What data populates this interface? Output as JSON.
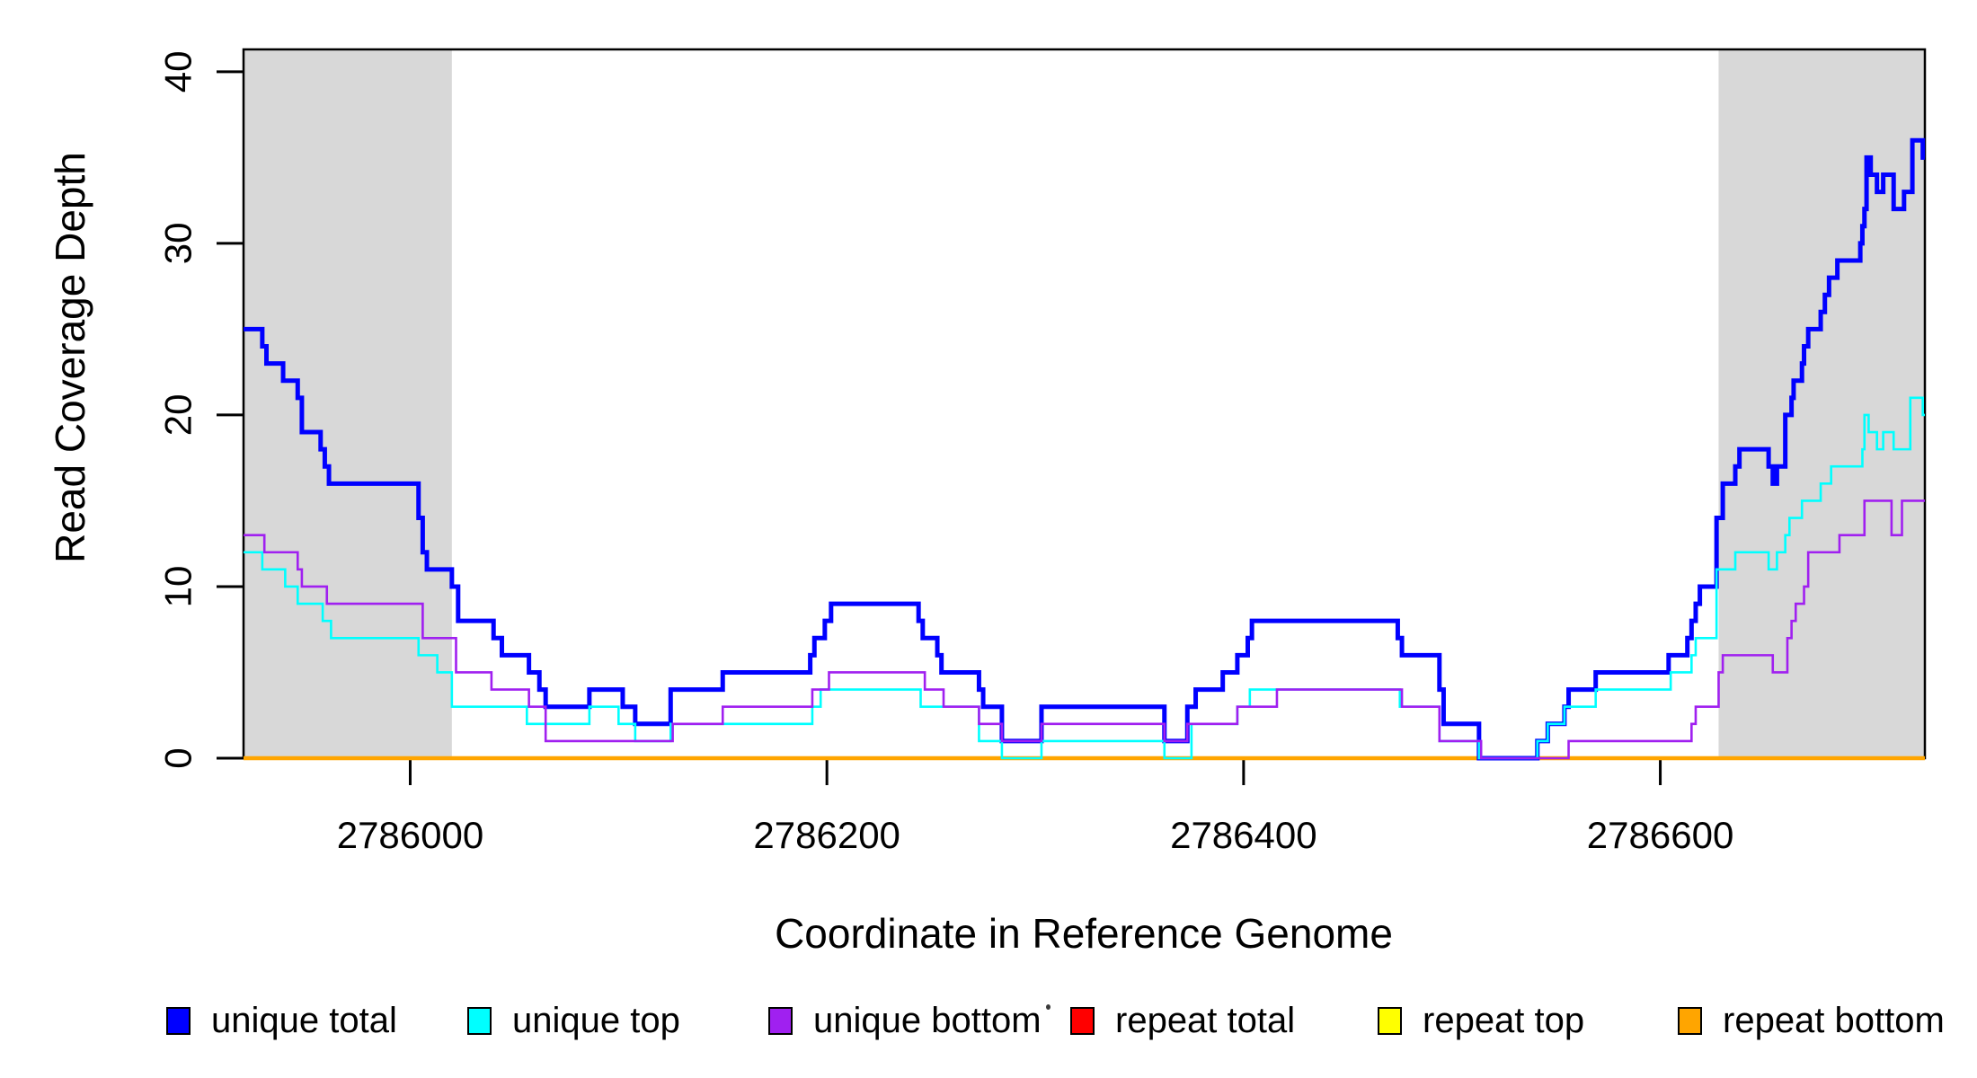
{
  "chart_data": {
    "type": "line",
    "subtype": "step",
    "title": "",
    "xlabel": "Coordinate in Reference Genome",
    "ylabel": "Read Coverage Depth",
    "xlim": [
      2785920,
      2786727
    ],
    "ylim": [
      0,
      41.3
    ],
    "x_ticks": [
      2786000,
      2786200,
      2786400,
      2786600
    ],
    "y_ticks": [
      0,
      10,
      20,
      30,
      40
    ],
    "grid": false,
    "box_color": "#000000",
    "shaded_regions": [
      {
        "x0": 2785920,
        "x1": 2786020,
        "color": "#d8d8d8"
      },
      {
        "x0": 2786628,
        "x1": 2786727,
        "color": "#d8d8d8"
      }
    ],
    "series": [
      {
        "name": "unique total",
        "color": "#0000ff",
        "width": 5,
        "steps": [
          [
            2785920,
            25
          ],
          [
            2785929,
            24
          ],
          [
            2785931,
            23
          ],
          [
            2785939,
            22
          ],
          [
            2785946,
            21
          ],
          [
            2785948,
            19
          ],
          [
            2785957,
            18
          ],
          [
            2785959,
            17
          ],
          [
            2785961,
            16
          ],
          [
            2786004,
            14
          ],
          [
            2786006,
            12
          ],
          [
            2786008,
            11
          ],
          [
            2786020,
            10
          ],
          [
            2786023,
            8
          ],
          [
            2786040,
            7
          ],
          [
            2786044,
            6
          ],
          [
            2786057,
            5
          ],
          [
            2786062,
            4
          ],
          [
            2786065,
            3
          ],
          [
            2786086,
            4
          ],
          [
            2786102,
            3
          ],
          [
            2786108,
            2
          ],
          [
            2786125,
            4
          ],
          [
            2786150,
            5
          ],
          [
            2786192,
            6
          ],
          [
            2786194,
            7
          ],
          [
            2786199,
            8
          ],
          [
            2786202,
            9
          ],
          [
            2786244,
            8
          ],
          [
            2786246,
            7
          ],
          [
            2786253,
            6
          ],
          [
            2786255,
            5
          ],
          [
            2786273,
            4
          ],
          [
            2786275,
            3
          ],
          [
            2786284,
            1
          ],
          [
            2786303,
            3
          ],
          [
            2786362,
            1
          ],
          [
            2786373,
            3
          ],
          [
            2786377,
            4
          ],
          [
            2786390,
            5
          ],
          [
            2786397,
            6
          ],
          [
            2786402,
            7
          ],
          [
            2786404,
            8
          ],
          [
            2786474,
            7
          ],
          [
            2786476,
            6
          ],
          [
            2786494,
            4
          ],
          [
            2786496,
            2
          ],
          [
            2786513,
            0
          ],
          [
            2786541,
            1
          ],
          [
            2786546,
            2
          ],
          [
            2786554,
            3
          ],
          [
            2786556,
            4
          ],
          [
            2786569,
            5
          ],
          [
            2786604,
            6
          ],
          [
            2786613,
            7
          ],
          [
            2786615,
            8
          ],
          [
            2786617,
            9
          ],
          [
            2786619,
            10
          ],
          [
            2786627,
            14
          ],
          [
            2786630,
            16
          ],
          [
            2786636,
            17
          ],
          [
            2786638,
            18
          ],
          [
            2786652,
            17
          ],
          [
            2786654,
            16
          ],
          [
            2786656,
            17
          ],
          [
            2786660,
            20
          ],
          [
            2786663,
            21
          ],
          [
            2786664,
            22
          ],
          [
            2786668,
            23
          ],
          [
            2786669,
            24
          ],
          [
            2786671,
            25
          ],
          [
            2786677,
            26
          ],
          [
            2786679,
            27
          ],
          [
            2786681,
            28
          ],
          [
            2786685,
            29
          ],
          [
            2786696,
            30
          ],
          [
            2786697,
            31
          ],
          [
            2786698,
            32
          ],
          [
            2786699,
            35
          ],
          [
            2786701,
            34
          ],
          [
            2786704,
            33
          ],
          [
            2786707,
            34
          ],
          [
            2786712,
            32
          ],
          [
            2786717,
            33
          ],
          [
            2786721,
            36
          ],
          [
            2786726,
            35
          ]
        ]
      },
      {
        "name": "unique top",
        "color": "#00ffff",
        "width": 2.6,
        "steps": [
          [
            2785920,
            12
          ],
          [
            2785929,
            11
          ],
          [
            2785940,
            10
          ],
          [
            2785946,
            9
          ],
          [
            2785958,
            8
          ],
          [
            2785962,
            7
          ],
          [
            2786004,
            6
          ],
          [
            2786013,
            5
          ],
          [
            2786020,
            3
          ],
          [
            2786056,
            2
          ],
          [
            2786086,
            3
          ],
          [
            2786100,
            2
          ],
          [
            2786108,
            1
          ],
          [
            2786125,
            2
          ],
          [
            2786193,
            3
          ],
          [
            2786197,
            4
          ],
          [
            2786245,
            3
          ],
          [
            2786273,
            1
          ],
          [
            2786284,
            0
          ],
          [
            2786303,
            1
          ],
          [
            2786362,
            0
          ],
          [
            2786375,
            2
          ],
          [
            2786397,
            3
          ],
          [
            2786403,
            4
          ],
          [
            2786475,
            3
          ],
          [
            2786494,
            1
          ],
          [
            2786513,
            0
          ],
          [
            2786541,
            1
          ],
          [
            2786546,
            2
          ],
          [
            2786554,
            3
          ],
          [
            2786569,
            4
          ],
          [
            2786605,
            5
          ],
          [
            2786615,
            6
          ],
          [
            2786617,
            7
          ],
          [
            2786627,
            11
          ],
          [
            2786636,
            12
          ],
          [
            2786652,
            11
          ],
          [
            2786656,
            12
          ],
          [
            2786660,
            13
          ],
          [
            2786662,
            14
          ],
          [
            2786668,
            15
          ],
          [
            2786677,
            16
          ],
          [
            2786682,
            17
          ],
          [
            2786697,
            18
          ],
          [
            2786698,
            20
          ],
          [
            2786700,
            19
          ],
          [
            2786704,
            18
          ],
          [
            2786707,
            19
          ],
          [
            2786712,
            18
          ],
          [
            2786720,
            21
          ],
          [
            2786726,
            20
          ]
        ]
      },
      {
        "name": "unique bottom",
        "color": "#a020f0",
        "width": 2.6,
        "steps": [
          [
            2785920,
            13
          ],
          [
            2785930,
            12
          ],
          [
            2785946,
            11
          ],
          [
            2785948,
            10
          ],
          [
            2785960,
            9
          ],
          [
            2786006,
            7
          ],
          [
            2786022,
            5
          ],
          [
            2786039,
            4
          ],
          [
            2786057,
            3
          ],
          [
            2786065,
            1
          ],
          [
            2786126,
            2
          ],
          [
            2786150,
            3
          ],
          [
            2786193,
            4
          ],
          [
            2786201,
            5
          ],
          [
            2786247,
            4
          ],
          [
            2786256,
            3
          ],
          [
            2786273,
            2
          ],
          [
            2786284,
            1
          ],
          [
            2786303,
            2
          ],
          [
            2786362,
            1
          ],
          [
            2786373,
            2
          ],
          [
            2786397,
            3
          ],
          [
            2786416,
            4
          ],
          [
            2786476,
            3
          ],
          [
            2786494,
            1
          ],
          [
            2786514,
            0
          ],
          [
            2786556,
            1
          ],
          [
            2786615,
            2
          ],
          [
            2786617,
            3
          ],
          [
            2786628,
            5
          ],
          [
            2786630,
            6
          ],
          [
            2786654,
            5
          ],
          [
            2786661,
            7
          ],
          [
            2786663,
            8
          ],
          [
            2786665,
            9
          ],
          [
            2786669,
            10
          ],
          [
            2786671,
            12
          ],
          [
            2786686,
            13
          ],
          [
            2786698,
            15
          ],
          [
            2786711,
            13
          ],
          [
            2786716,
            15
          ]
        ]
      },
      {
        "name": "repeat total",
        "color": "#ff0000",
        "width": 2.2,
        "steps": [
          [
            2785920,
            0
          ]
        ]
      },
      {
        "name": "repeat top",
        "color": "#ffff00",
        "width": 2.2,
        "steps": [
          [
            2785920,
            0
          ]
        ]
      },
      {
        "name": "repeat bottom",
        "color": "#ffa500",
        "width": 4.5,
        "steps": [
          [
            2785920,
            0
          ]
        ]
      }
    ],
    "legend": {
      "position": "bottom",
      "items": [
        {
          "label": "unique total",
          "color": "#0000ff"
        },
        {
          "label": "unique top",
          "color": "#00ffff"
        },
        {
          "label": "unique bottom",
          "color": "#a020f0"
        },
        {
          "label": "repeat total",
          "color": "#ff0000"
        },
        {
          "label": "repeat top",
          "color": "#ffff00"
        },
        {
          "label": "repeat bottom",
          "color": "#ffa500"
        }
      ]
    }
  }
}
